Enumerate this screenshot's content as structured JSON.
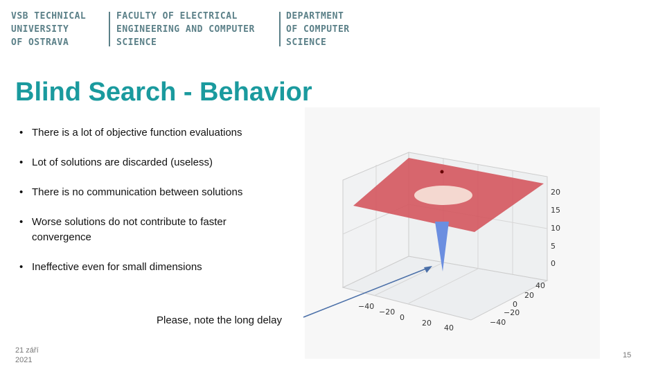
{
  "header": {
    "university": [
      "VSB TECHNICAL",
      "UNIVERSITY",
      "OF OSTRAVA"
    ],
    "faculty": [
      "FACULTY OF ELECTRICAL",
      "ENGINEERING AND COMPUTER",
      "SCIENCE"
    ],
    "department": [
      "DEPARTMENT",
      "OF COMPUTER",
      "SCIENCE"
    ]
  },
  "title": "Blind Search - Behavior",
  "bullets": [
    "There is a lot of objective function evaluations",
    "Lot of solutions are discarded (useless)",
    "There is no communication between solutions",
    "Worse solutions do not contribute to faster convergence",
    "Ineffective even for small dimensions"
  ],
  "note": "Please, note the long delay",
  "figure": {
    "z_ticks": [
      "20",
      "15",
      "10",
      "5",
      "0"
    ],
    "x_ticks": [
      "−40",
      "−20",
      "0",
      "20",
      "40"
    ],
    "y_ticks": [
      "40",
      "20",
      "0",
      "−20",
      "−40"
    ]
  },
  "footer": {
    "date": [
      "21 září",
      "2021"
    ],
    "page": "15"
  }
}
